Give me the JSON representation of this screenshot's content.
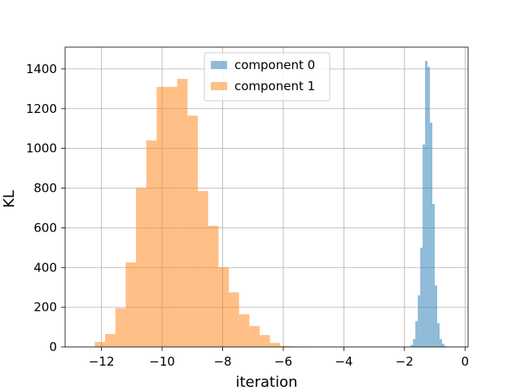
{
  "chart_data": {
    "type": "histogram",
    "xlabel": "iteration",
    "ylabel": "KL",
    "xlim": [
      -13.2,
      0.1
    ],
    "ylim": [
      0,
      1510
    ],
    "xticks": [
      -12,
      -10,
      -8,
      -6,
      -4,
      -2,
      0
    ],
    "xtick_labels": [
      "−12",
      "−10",
      "−8",
      "−6",
      "−4",
      "−2",
      "0"
    ],
    "yticks": [
      0,
      200,
      400,
      600,
      800,
      1000,
      1200,
      1400
    ],
    "ytick_labels": [
      "0",
      "200",
      "400",
      "600",
      "800",
      "1000",
      "1200",
      "1400"
    ],
    "grid": true,
    "legend_position": "top-center",
    "series": [
      {
        "name": "component 0",
        "color": "#1f77b4",
        "alpha": 0.5,
        "bin_edges": [
          -1.8,
          -1.72,
          -1.64,
          -1.56,
          -1.48,
          -1.4,
          -1.32,
          -1.24,
          -1.16,
          -1.08,
          -1.0,
          -0.92,
          -0.84,
          -0.76,
          -0.68,
          -0.6
        ],
        "counts": [
          10,
          40,
          130,
          260,
          500,
          1020,
          1440,
          1410,
          1130,
          720,
          310,
          120,
          40,
          15,
          4
        ]
      },
      {
        "name": "component 1",
        "color": "#ff7f0e",
        "alpha": 0.5,
        "bin_edges": [
          -12.22,
          -11.88,
          -11.54,
          -11.2,
          -10.86,
          -10.52,
          -10.18,
          -9.84,
          -9.5,
          -9.16,
          -8.82,
          -8.48,
          -8.14,
          -7.8,
          -7.46,
          -7.12,
          -6.78,
          -6.44,
          -6.1,
          -5.76,
          -5.42,
          -5.08
        ],
        "counts": [
          25,
          65,
          195,
          425,
          800,
          1040,
          1310,
          1310,
          1350,
          1165,
          785,
          610,
          400,
          275,
          165,
          105,
          60,
          20,
          5,
          3,
          2
        ]
      }
    ]
  }
}
